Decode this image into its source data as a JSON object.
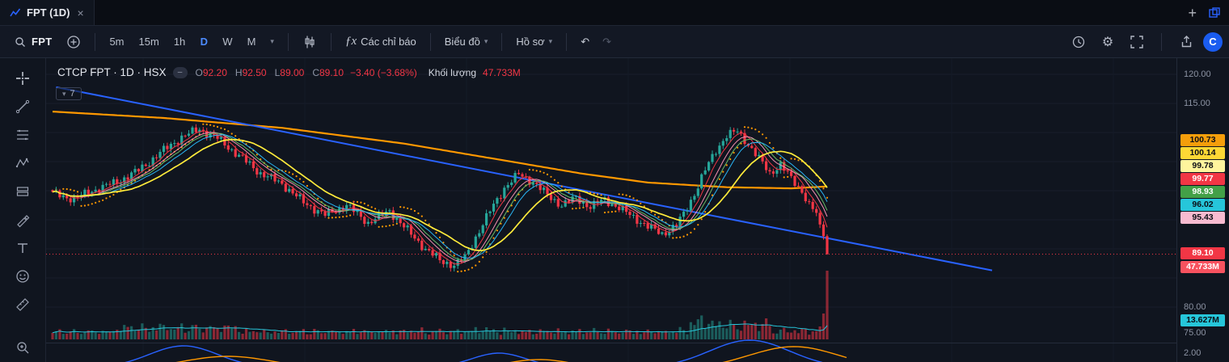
{
  "tabbar": {
    "tab_title": "FPT (1D)",
    "close_label": "×",
    "add_label": "+"
  },
  "icons": {
    "caret": "▾",
    "gear": "⚙",
    "undo": "↶",
    "redo": "↷",
    "fx": "ƒx",
    "minus": "–",
    "logo": "C",
    "plus_big": "+"
  },
  "toolbar": {
    "search_value": "FPT",
    "timeframes": [
      {
        "label": "5m"
      },
      {
        "label": "15m"
      },
      {
        "label": "1h"
      },
      {
        "label": "D",
        "active": true
      },
      {
        "label": "W"
      },
      {
        "label": "M"
      }
    ],
    "indicators_label": "Các chỉ báo",
    "chart_menu": "Biểu đồ",
    "profile_menu": "Hồ sơ"
  },
  "legend": {
    "title": "CTCP FPT · 1D · HSX",
    "o_label": "O",
    "o": "92.20",
    "h_label": "H",
    "h": "92.50",
    "l_label": "L",
    "l": "89.00",
    "c_label": "C",
    "c": "89.10",
    "change": "−3.40 (−3.68%)",
    "volume_label": "Khối lượng",
    "volume_value": "47.733M",
    "indicators_count": "7"
  },
  "price_axis": {
    "ticks": [
      {
        "value": "120.00"
      },
      {
        "value": "115.00"
      },
      {
        "value": "80.00"
      },
      {
        "value": "75.00"
      },
      {
        "value": "2.00"
      }
    ],
    "labels": [
      {
        "value": "100.73",
        "bg": "#f59e0b",
        "fg": "#0b0e15"
      },
      {
        "value": "100.14",
        "bg": "#fdd835",
        "fg": "#0b0e15"
      },
      {
        "value": "99.78",
        "bg": "#fff59d",
        "fg": "#0b0e15"
      },
      {
        "value": "99.77",
        "bg": "#f23645",
        "fg": "#ffffff"
      },
      {
        "value": "98.93",
        "bg": "#43a047",
        "fg": "#ffffff"
      },
      {
        "value": "96.02",
        "bg": "#26c6da",
        "fg": "#0b0e15"
      },
      {
        "value": "95.43",
        "bg": "#f8bbd0",
        "fg": "#0b0e15"
      }
    ],
    "last_price": {
      "value": "89.10",
      "bg": "#f23645",
      "fg": "#ffffff"
    },
    "volume": {
      "value": "47.733M",
      "bg": "#f7525f",
      "fg": "#ffffff"
    },
    "volume_ma": {
      "value": "13.627M",
      "bg": "#26c6da",
      "fg": "#0b0e15"
    }
  },
  "chart_data": {
    "type": "candlestick",
    "symbol": "FPT",
    "interval": "1D",
    "exchange": "HSX",
    "title": "CTCP FPT · 1D · HSX",
    "last_candle": {
      "open": 92.2,
      "high": 92.5,
      "low": 89.0,
      "close": 89.1
    },
    "change": -3.4,
    "change_percent": -3.68,
    "volume_m": 47.733,
    "volume_ma_m": 13.627,
    "ylim_visible": [
      75,
      120
    ],
    "moving_average_values": {
      "orange": 100.73,
      "yellow": 100.14,
      "pale_yellow": 99.78,
      "red": 99.77,
      "green": 98.93,
      "cyan": 96.02,
      "pink": 95.43
    },
    "close_anchors": [
      [
        0,
        99.5
      ],
      [
        6,
        98.6
      ],
      [
        12,
        100.2
      ],
      [
        18,
        101.5
      ],
      [
        24,
        103.5
      ],
      [
        30,
        106.5
      ],
      [
        36,
        109.2
      ],
      [
        41,
        110.6
      ],
      [
        46,
        109.0
      ],
      [
        52,
        106.0
      ],
      [
        58,
        103.0
      ],
      [
        64,
        101.2
      ],
      [
        70,
        98.0
      ],
      [
        76,
        95.8
      ],
      [
        82,
        97.5
      ],
      [
        88,
        94.5
      ],
      [
        94,
        96.5
      ],
      [
        100,
        92.5
      ],
      [
        104,
        90.0
      ],
      [
        108,
        88.0
      ],
      [
        112,
        87.2
      ],
      [
        115,
        88.5
      ],
      [
        118,
        92.0
      ],
      [
        122,
        96.5
      ],
      [
        126,
        100.5
      ],
      [
        130,
        102.8
      ],
      [
        134,
        101.5
      ],
      [
        138,
        99.2
      ],
      [
        142,
        97.5
      ],
      [
        146,
        98.8
      ],
      [
        150,
        97.2
      ],
      [
        154,
        98.5
      ],
      [
        158,
        97.0
      ],
      [
        162,
        95.5
      ],
      [
        166,
        93.8
      ],
      [
        170,
        92.6
      ],
      [
        174,
        94.0
      ],
      [
        176,
        96.0
      ],
      [
        179,
        99.5
      ],
      [
        182,
        103.5
      ],
      [
        185,
        107.0
      ],
      [
        188,
        109.5
      ],
      [
        191,
        110.2
      ],
      [
        194,
        108.0
      ],
      [
        197,
        105.5
      ],
      [
        200,
        103.0
      ],
      [
        203,
        104.5
      ],
      [
        206,
        102.0
      ],
      [
        209,
        100.0
      ],
      [
        211,
        97.5
      ],
      [
        213,
        96.2
      ],
      [
        215,
        92.2
      ],
      [
        216,
        89.1
      ]
    ],
    "long_ma_anchors": [
      [
        0,
        113.6
      ],
      [
        31,
        112.5
      ],
      [
        64,
        110.8
      ],
      [
        98,
        108.1
      ],
      [
        125,
        105.3
      ],
      [
        148,
        102.9
      ],
      [
        166,
        101.4
      ],
      [
        188,
        100.6
      ],
      [
        206,
        100.4
      ],
      [
        216,
        100.73
      ]
    ],
    "trendline": {
      "from_index": 1,
      "from_price": 117.8,
      "to_index": 262,
      "to_price": 86.3,
      "color": "#2962ff"
    },
    "volume_overrides": {
      "214": 9,
      "215": 18,
      "216": 47.733
    },
    "colors": {
      "up": "#26a69a",
      "down": "#f23645",
      "sar": "#ff9800",
      "volume_ma": "#26c6da",
      "yellow_ma": "#ffeb3b",
      "orange_ma": "#ff9800"
    }
  }
}
